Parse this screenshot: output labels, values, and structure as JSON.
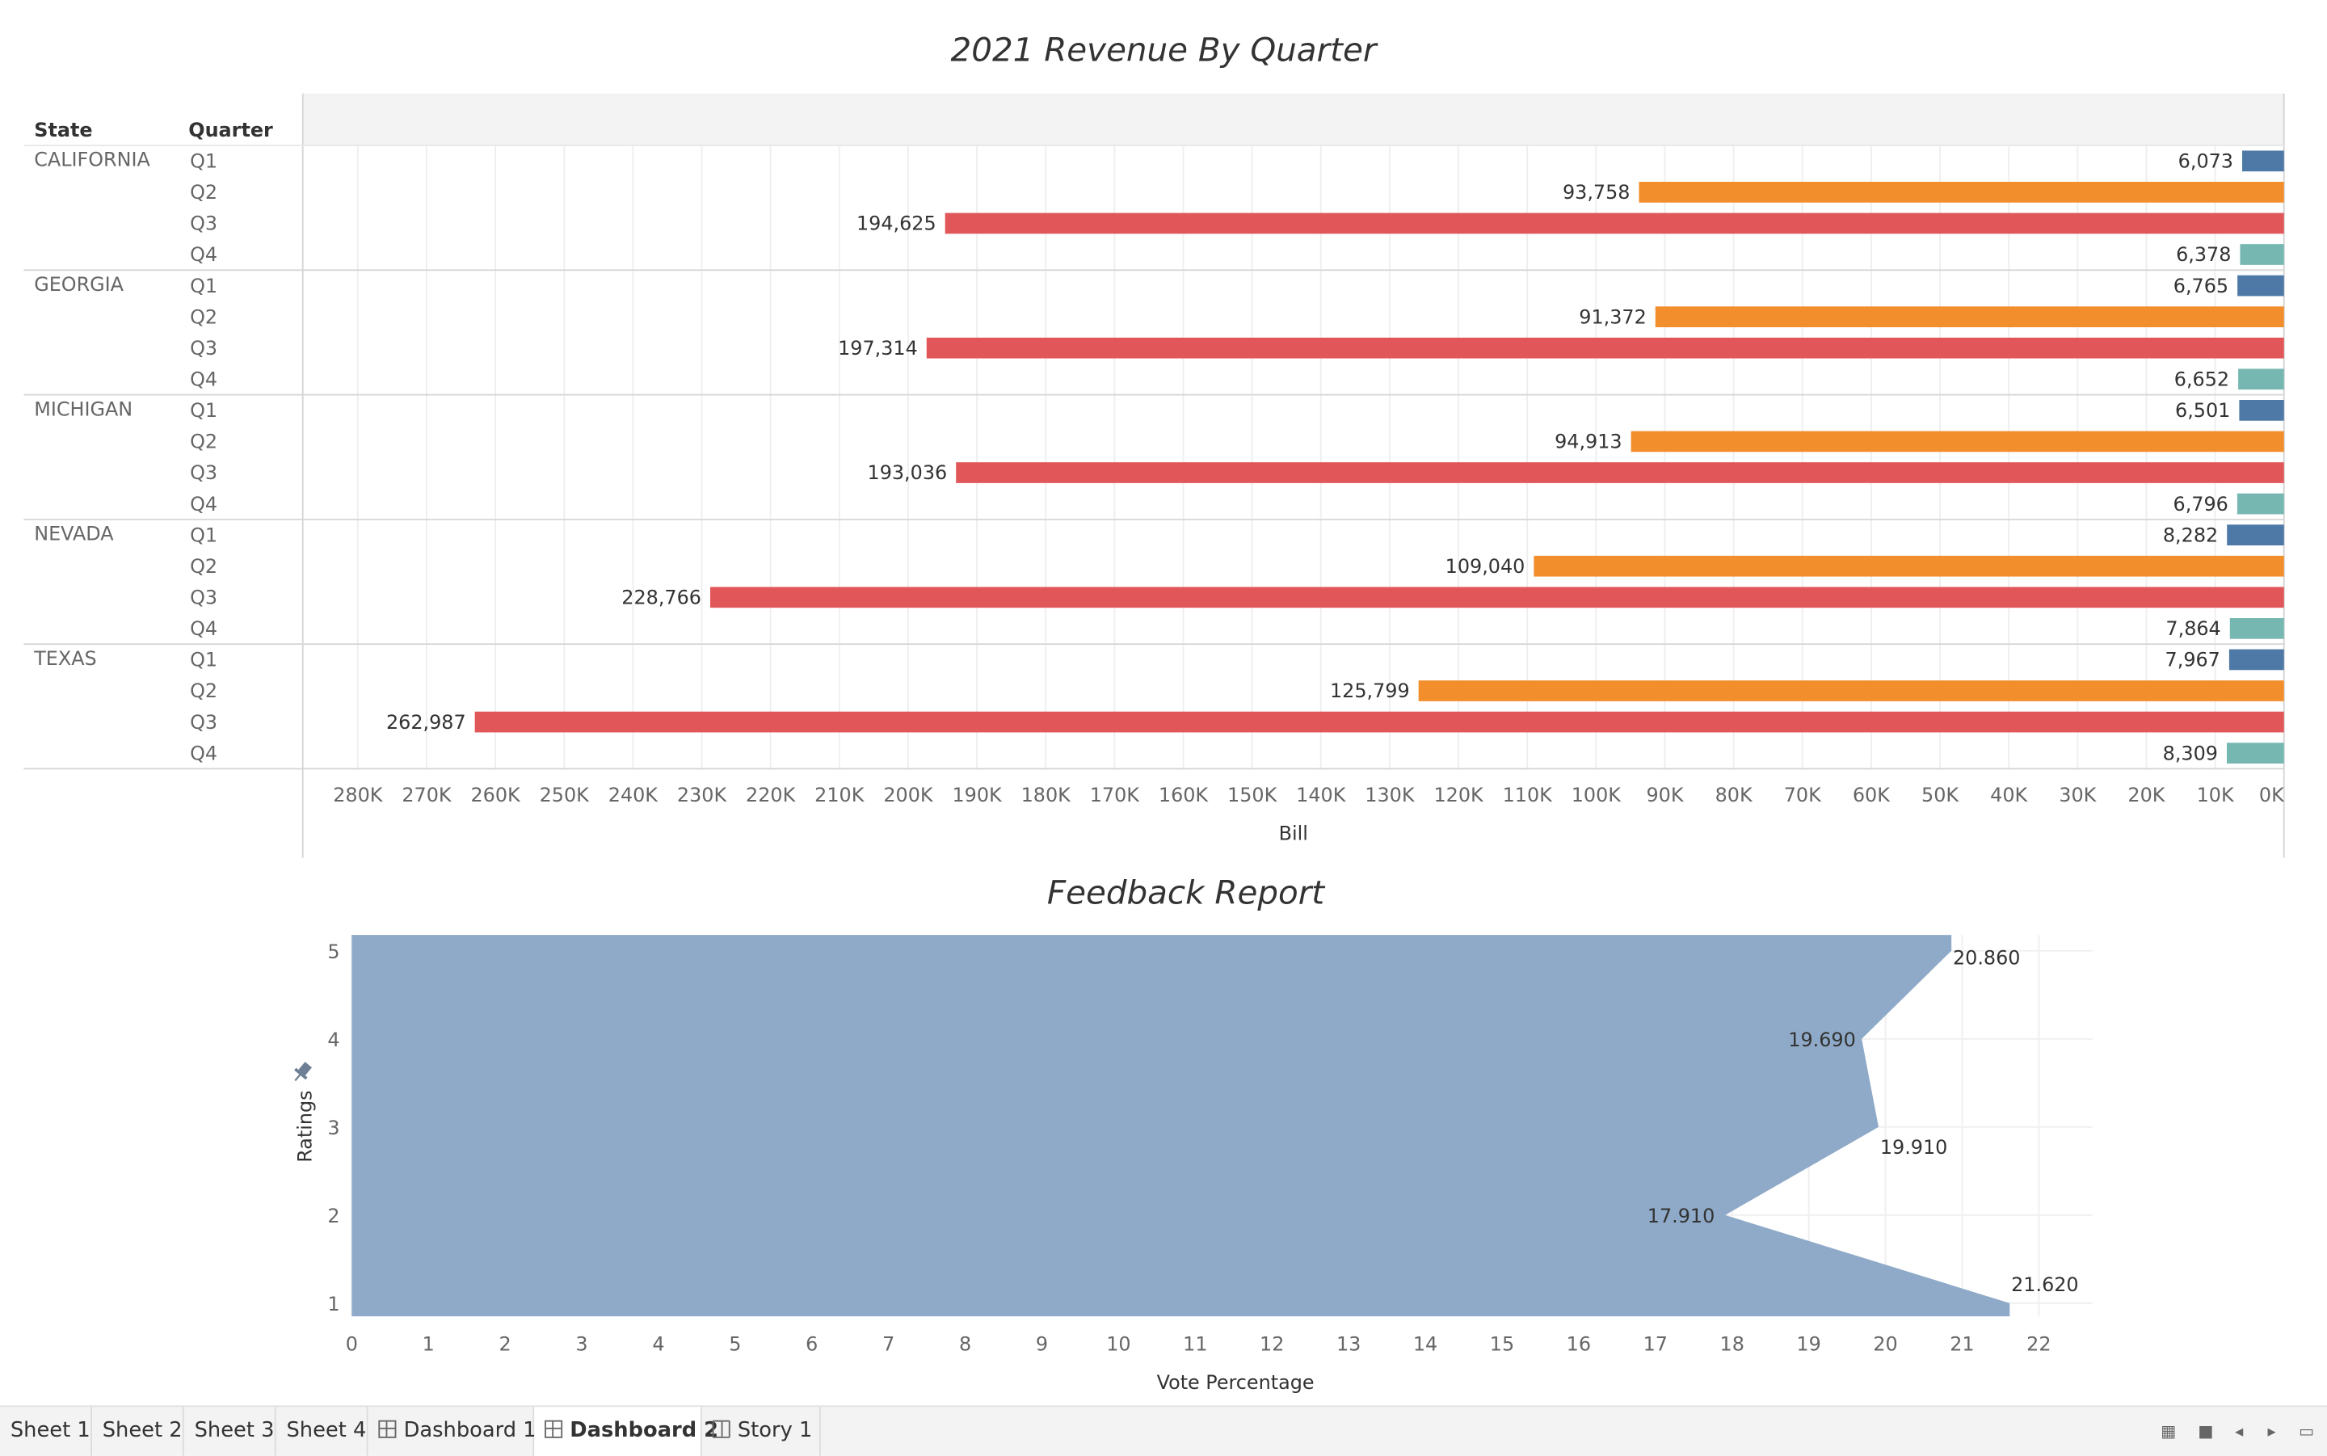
{
  "revenue": {
    "title": "2021 Revenue By Quarter",
    "headers": {
      "state": "State",
      "quarter": "Quarter"
    },
    "axis_label": "Bill",
    "ticks": [
      "280K",
      "270K",
      "260K",
      "250K",
      "240K",
      "230K",
      "220K",
      "210K",
      "200K",
      "190K",
      "180K",
      "170K",
      "160K",
      "150K",
      "140K",
      "130K",
      "120K",
      "110K",
      "100K",
      "90K",
      "80K",
      "70K",
      "60K",
      "50K",
      "40K",
      "30K",
      "20K",
      "10K",
      "0K"
    ],
    "quarter_colors": {
      "Q1": "#4e79a7",
      "Q2": "#f28e2b",
      "Q3": "#e15759",
      "Q4": "#76b7b2"
    }
  },
  "feedback": {
    "title": "Feedback Report",
    "xlabel": "Vote Percentage",
    "ylabel": "Ratings",
    "x_ticks": [
      "0",
      "1",
      "2",
      "3",
      "4",
      "5",
      "6",
      "7",
      "8",
      "9",
      "10",
      "11",
      "12",
      "13",
      "14",
      "15",
      "16",
      "17",
      "18",
      "19",
      "20",
      "21",
      "22"
    ],
    "y_ticks": [
      "5",
      "4",
      "3",
      "2",
      "1"
    ],
    "fill_color": "#8faac8"
  },
  "chart_data": [
    {
      "type": "bar",
      "title": "2021 Revenue By Quarter",
      "orientation": "horizontal",
      "reversed_axis": true,
      "xlabel": "Bill",
      "xlim": [
        0,
        288000
      ],
      "rows": [
        {
          "state": "CALIFORNIA",
          "quarter": "Q1",
          "value": 6073,
          "label": "6,073"
        },
        {
          "state": "CALIFORNIA",
          "quarter": "Q2",
          "value": 93758,
          "label": "93,758"
        },
        {
          "state": "CALIFORNIA",
          "quarter": "Q3",
          "value": 194625,
          "label": "194,625"
        },
        {
          "state": "CALIFORNIA",
          "quarter": "Q4",
          "value": 6378,
          "label": "6,378"
        },
        {
          "state": "GEORGIA",
          "quarter": "Q1",
          "value": 6765,
          "label": "6,765"
        },
        {
          "state": "GEORGIA",
          "quarter": "Q2",
          "value": 91372,
          "label": "91,372"
        },
        {
          "state": "GEORGIA",
          "quarter": "Q3",
          "value": 197314,
          "label": "197,314"
        },
        {
          "state": "GEORGIA",
          "quarter": "Q4",
          "value": 6652,
          "label": "6,652"
        },
        {
          "state": "MICHIGAN",
          "quarter": "Q1",
          "value": 6501,
          "label": "6,501"
        },
        {
          "state": "MICHIGAN",
          "quarter": "Q2",
          "value": 94913,
          "label": "94,913"
        },
        {
          "state": "MICHIGAN",
          "quarter": "Q3",
          "value": 193036,
          "label": "193,036"
        },
        {
          "state": "MICHIGAN",
          "quarter": "Q4",
          "value": 6796,
          "label": "6,796"
        },
        {
          "state": "NEVADA",
          "quarter": "Q1",
          "value": 8282,
          "label": "8,282"
        },
        {
          "state": "NEVADA",
          "quarter": "Q2",
          "value": 109040,
          "label": "109,040"
        },
        {
          "state": "NEVADA",
          "quarter": "Q3",
          "value": 228766,
          "label": "228,766"
        },
        {
          "state": "NEVADA",
          "quarter": "Q4",
          "value": 7864,
          "label": "7,864"
        },
        {
          "state": "TEXAS",
          "quarter": "Q1",
          "value": 7967,
          "label": "7,967"
        },
        {
          "state": "TEXAS",
          "quarter": "Q2",
          "value": 125799,
          "label": "125,799"
        },
        {
          "state": "TEXAS",
          "quarter": "Q3",
          "value": 262987,
          "label": "262,987"
        },
        {
          "state": "TEXAS",
          "quarter": "Q4",
          "value": 8309,
          "label": "8,309"
        }
      ]
    },
    {
      "type": "area",
      "title": "Feedback Report",
      "xlabel": "Vote Percentage",
      "ylabel": "Ratings",
      "xlim": [
        0,
        22.7
      ],
      "ylim": [
        0.85,
        5.18
      ],
      "points": [
        {
          "rating": 1,
          "value": 21.62,
          "label": "21.620"
        },
        {
          "rating": 2,
          "value": 17.91,
          "label": "17.910"
        },
        {
          "rating": 3,
          "value": 19.91,
          "label": "19.910"
        },
        {
          "rating": 4,
          "value": 19.69,
          "label": "19.690"
        },
        {
          "rating": 5,
          "value": 20.86,
          "label": "20.860"
        }
      ]
    }
  ],
  "tabs": [
    {
      "label": "Sheet 1",
      "icon": "none",
      "active": false
    },
    {
      "label": "Sheet 2",
      "icon": "none",
      "active": false
    },
    {
      "label": "Sheet 3",
      "icon": "none",
      "active": false
    },
    {
      "label": "Sheet 4",
      "icon": "none",
      "active": false
    },
    {
      "label": "Dashboard 1",
      "icon": "dashboard-icon",
      "active": false
    },
    {
      "label": "Dashboard 2",
      "icon": "dashboard-icon",
      "active": true
    },
    {
      "label": "Story 1",
      "icon": "story-icon",
      "active": false
    }
  ]
}
